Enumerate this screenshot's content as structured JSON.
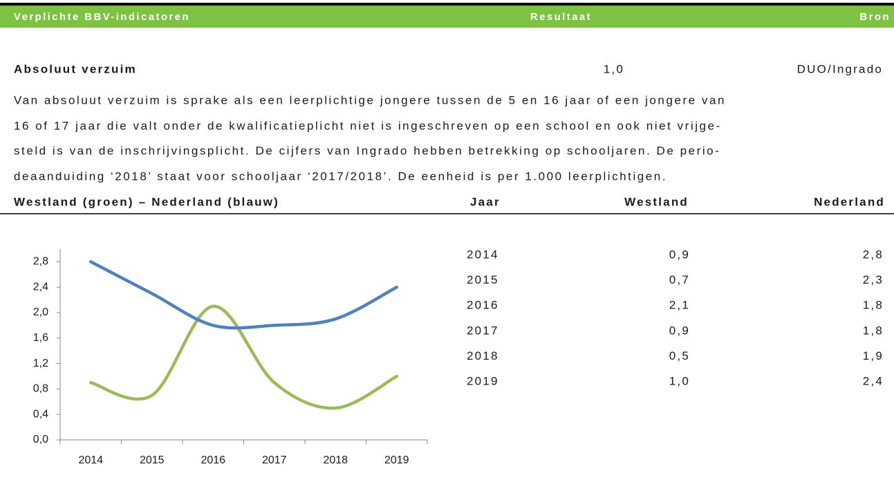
{
  "header": {
    "title": "Verplichte BBV-indicatoren",
    "result": "Resultaat",
    "source": "Bron"
  },
  "indicator": {
    "name": "Absoluut verzuim",
    "result": "1,0",
    "source": "DUO/Ingrado"
  },
  "description": [
    "Van absoluut verzuim is sprake als een leerplichtige jongere tussen de 5 en 16 jaar of een jongere van",
    "16 of 17 jaar die valt onder de kwalificatieplicht niet is ingeschreven op een school en ook niet vrijge-",
    "steld is van de inschrijvingsplicht. De cijfers van Ingrado hebben betrekking op schooljaren. De perio-",
    "deaanduiding ‘2018’ staat voor schooljaar ‘2017/2018’. De eenheid is per 1.000 leerplichtigen."
  ],
  "table": {
    "columns": [
      "Westland (groen) – Nederland (blauw)",
      "Jaar",
      "Westland",
      "Nederland"
    ],
    "rows": [
      [
        "2014",
        "0,9",
        "2,8"
      ],
      [
        "2015",
        "0,7",
        "2,3"
      ],
      [
        "2016",
        "2,1",
        "1,8"
      ],
      [
        "2017",
        "0,9",
        "1,8"
      ],
      [
        "2018",
        "0,5",
        "1,9"
      ],
      [
        "2019",
        "1,0",
        "2,4"
      ]
    ]
  },
  "chart_data": {
    "type": "line",
    "smooth": true,
    "categories": [
      "2014",
      "2015",
      "2016",
      "2017",
      "2018",
      "2019"
    ],
    "series": [
      {
        "name": "Westland",
        "color": "#9bbb59",
        "values": [
          0.9,
          0.7,
          2.1,
          0.9,
          0.5,
          1.0
        ]
      },
      {
        "name": "Nederland",
        "color": "#4f81bd",
        "values": [
          2.8,
          2.3,
          1.8,
          1.8,
          1.9,
          2.4
        ]
      }
    ],
    "ylim": [
      0,
      3.0
    ],
    "yticks": [
      {
        "value": 0,
        "label": "0,0"
      },
      {
        "value": 0.4,
        "label": "0,4"
      },
      {
        "value": 0.8,
        "label": "0,8"
      },
      {
        "value": 1.2,
        "label": "1,2"
      },
      {
        "value": 1.6,
        "label": "1,6"
      },
      {
        "value": 2.0,
        "label": "2,0"
      },
      {
        "value": 2.4,
        "label": "2,4"
      },
      {
        "value": 2.8,
        "label": "2,8"
      }
    ]
  }
}
